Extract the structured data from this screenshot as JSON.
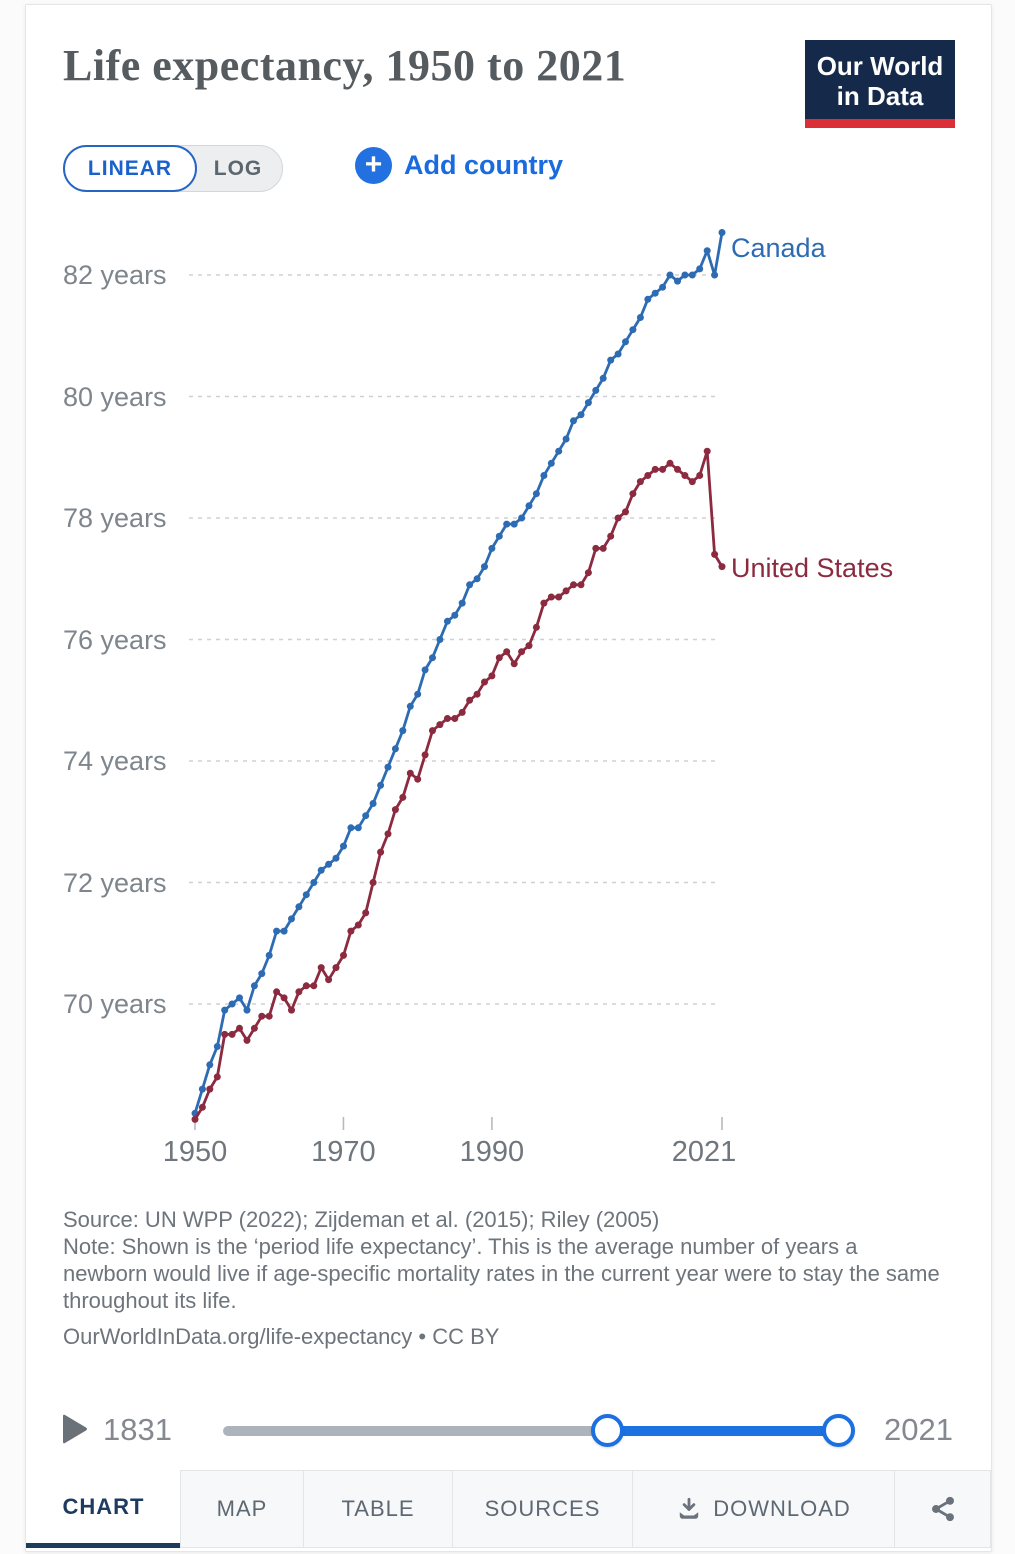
{
  "header": {
    "title": "Life expectancy, 1950 to 2021",
    "logo_line1": "Our World",
    "logo_line2": "in Data"
  },
  "controls": {
    "linear_label": "LINEAR",
    "log_label": "LOG",
    "plus_glyph": "+",
    "add_country_label": "Add country"
  },
  "icons": {
    "add_country": "plus-circle",
    "play": "play-triangle",
    "download": "download-tray-arrow",
    "share": "share-nodes"
  },
  "chart_data": {
    "type": "line",
    "title": "Life expectancy, 1950 to 2021",
    "grid": "horizontal-dashed",
    "legend_position": "end-of-line-labels",
    "xlim": [
      1950,
      2021
    ],
    "ylim": [
      68,
      83.3
    ],
    "x": [
      1950,
      1951,
      1952,
      1953,
      1954,
      1955,
      1956,
      1957,
      1958,
      1959,
      1960,
      1961,
      1962,
      1963,
      1964,
      1965,
      1966,
      1967,
      1968,
      1969,
      1970,
      1971,
      1972,
      1973,
      1974,
      1975,
      1976,
      1977,
      1978,
      1979,
      1980,
      1981,
      1982,
      1983,
      1984,
      1985,
      1986,
      1987,
      1988,
      1989,
      1990,
      1991,
      1992,
      1993,
      1994,
      1995,
      1996,
      1997,
      1998,
      1999,
      2000,
      2001,
      2002,
      2003,
      2004,
      2005,
      2006,
      2007,
      2008,
      2009,
      2010,
      2011,
      2012,
      2013,
      2014,
      2015,
      2016,
      2017,
      2018,
      2019,
      2020,
      2021
    ],
    "series": [
      {
        "name": "Canada",
        "color": "#2d6bb3",
        "label_dy": 15,
        "values": [
          68.2,
          68.6,
          69.0,
          69.3,
          69.9,
          70.0,
          70.1,
          69.9,
          70.3,
          70.5,
          70.8,
          71.2,
          71.2,
          71.4,
          71.6,
          71.8,
          72.0,
          72.2,
          72.3,
          72.4,
          72.6,
          72.9,
          72.9,
          73.1,
          73.3,
          73.6,
          73.9,
          74.2,
          74.5,
          74.9,
          75.1,
          75.5,
          75.7,
          76.0,
          76.3,
          76.4,
          76.6,
          76.9,
          77.0,
          77.2,
          77.5,
          77.7,
          77.9,
          77.9,
          78.0,
          78.2,
          78.4,
          78.7,
          78.9,
          79.1,
          79.3,
          79.6,
          79.7,
          79.9,
          80.1,
          80.3,
          80.6,
          80.7,
          80.9,
          81.1,
          81.3,
          81.6,
          81.7,
          81.8,
          82.0,
          81.9,
          82.0,
          82.0,
          82.1,
          82.4,
          82.0,
          82.7
        ]
      },
      {
        "name": "United States",
        "color": "#8c2a3f",
        "label_dy": 0,
        "values": [
          68.1,
          68.3,
          68.6,
          68.8,
          69.5,
          69.5,
          69.6,
          69.4,
          69.6,
          69.8,
          69.8,
          70.2,
          70.1,
          69.9,
          70.2,
          70.3,
          70.3,
          70.6,
          70.4,
          70.6,
          70.8,
          71.2,
          71.3,
          71.5,
          72.0,
          72.5,
          72.8,
          73.2,
          73.4,
          73.8,
          73.7,
          74.1,
          74.5,
          74.6,
          74.7,
          74.7,
          74.8,
          75.0,
          75.1,
          75.3,
          75.4,
          75.7,
          75.8,
          75.6,
          75.8,
          75.9,
          76.2,
          76.6,
          76.7,
          76.7,
          76.8,
          76.9,
          76.9,
          77.1,
          77.5,
          77.5,
          77.7,
          78.0,
          78.1,
          78.4,
          78.6,
          78.7,
          78.8,
          78.8,
          78.9,
          78.8,
          78.7,
          78.6,
          78.7,
          79.1,
          77.4,
          77.2
        ]
      }
    ],
    "yticks": [
      {
        "value": 82,
        "label": "82 years"
      },
      {
        "value": 80,
        "label": "80 years"
      },
      {
        "value": 78,
        "label": "78 years"
      },
      {
        "value": 76,
        "label": "76 years"
      },
      {
        "value": 74,
        "label": "74 years"
      },
      {
        "value": 72,
        "label": "72 years"
      },
      {
        "value": 70,
        "label": "70 years"
      }
    ],
    "xticks": [
      {
        "value": 1950,
        "label": "1950"
      },
      {
        "value": 1970,
        "label": "1970"
      },
      {
        "value": 1990,
        "label": "1990"
      },
      {
        "value": 2021,
        "label": "2021"
      }
    ]
  },
  "footer": {
    "source": "Source: UN WPP (2022); Zijdeman et al. (2015); Riley (2005)",
    "note": "Note: Shown is the ‘period life expectancy’. This is the average number of years a newborn would live if age-specific mortality rates in the current year were to stay the same throughout its life.",
    "citation": "OurWorldInData.org/life-expectancy • CC BY"
  },
  "timeline": {
    "start_year": "1831",
    "end_year": "2021"
  },
  "tabs": [
    {
      "label": "CHART",
      "active": true
    },
    {
      "label": "MAP",
      "active": false
    },
    {
      "label": "TABLE",
      "active": false
    },
    {
      "label": "SOURCES",
      "active": false
    },
    {
      "label": "DOWNLOAD",
      "active": false
    }
  ]
}
